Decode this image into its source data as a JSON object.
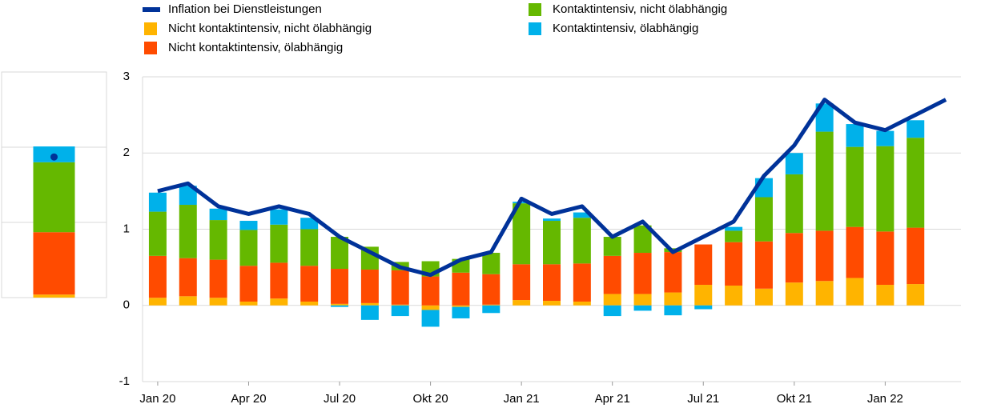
{
  "chart_data": [
    {
      "type": "bar",
      "categories": [
        "Jan 20",
        null,
        null,
        "Apr 20",
        null,
        null,
        "Jul 20",
        null,
        null,
        "Okt 20",
        null,
        null,
        "Jan 21",
        null,
        null,
        "Apr 21",
        null,
        null,
        "Jul 21",
        null,
        null,
        "Okt 21",
        null,
        null,
        "Jan 22",
        null,
        null
      ],
      "series": [
        {
          "name": "Inflation bei Dienstleistungen",
          "kind": "line",
          "color": "#003299",
          "values": [
            1.5,
            1.6,
            1.3,
            1.2,
            1.3,
            1.2,
            0.9,
            0.7,
            0.5,
            0.4,
            0.6,
            0.7,
            1.4,
            1.2,
            1.3,
            0.9,
            1.1,
            0.7,
            0.9,
            1.1,
            1.7,
            2.1,
            2.7,
            2.4,
            2.3,
            2.5,
            2.7
          ]
        },
        {
          "name": "Nicht kontaktintensiv, nicht ölabhängig",
          "kind": "bar",
          "color": "#ffb400",
          "values": [
            0.1,
            0.12,
            0.1,
            0.05,
            0.09,
            0.05,
            0.02,
            0.03,
            0.01,
            -0.06,
            -0.02,
            0.01,
            0.07,
            0.06,
            0.05,
            0.15,
            0.15,
            0.17,
            0.27,
            0.26,
            0.22,
            0.3,
            0.32,
            0.36,
            0.27,
            0.28,
            null
          ]
        },
        {
          "name": "Nicht kontaktintensiv, ölabhängig",
          "kind": "bar",
          "color": "#ff4b00",
          "values": [
            0.55,
            0.5,
            0.5,
            0.47,
            0.47,
            0.47,
            0.46,
            0.44,
            0.45,
            0.38,
            0.43,
            0.4,
            0.47,
            0.48,
            0.5,
            0.5,
            0.54,
            0.53,
            0.53,
            0.57,
            0.62,
            0.65,
            0.66,
            0.67,
            0.7,
            0.74,
            null
          ]
        },
        {
          "name": "Kontaktintensiv, nicht ölabhängig",
          "kind": "bar",
          "color": "#65b800",
          "values": [
            0.58,
            0.7,
            0.52,
            0.47,
            0.5,
            0.48,
            0.42,
            0.3,
            0.11,
            0.2,
            0.18,
            0.28,
            0.8,
            0.57,
            0.6,
            0.25,
            0.36,
            0.05,
            0,
            0.15,
            0.58,
            0.77,
            1.3,
            1.05,
            1.12,
            1.18,
            null
          ]
        },
        {
          "name": "Kontaktintensiv, ölabhängig",
          "kind": "bar",
          "color": "#00b1ea",
          "values": [
            0.25,
            0.25,
            0.15,
            0.12,
            0.2,
            0.15,
            -0.02,
            -0.19,
            -0.14,
            -0.22,
            -0.15,
            -0.1,
            0.02,
            0.03,
            0.07,
            -0.14,
            -0.07,
            -0.13,
            -0.05,
            0.05,
            0.25,
            0.28,
            0.37,
            0.3,
            0.2,
            0.23,
            null
          ]
        }
      ],
      "ylim": [
        -1,
        3
      ],
      "yticks": [
        -1,
        0,
        1,
        2,
        3
      ],
      "grid": true
    },
    {
      "type": "bar",
      "ylim": [
        0,
        3
      ],
      "yticks": [
        1,
        2
      ],
      "grid": true,
      "series": [
        {
          "color": "#ffb400",
          "values": [
            0.04
          ]
        },
        {
          "color": "#ff4b00",
          "values": [
            0.83
          ]
        },
        {
          "color": "#65b800",
          "values": [
            0.93
          ]
        },
        {
          "color": "#00b1ea",
          "values": [
            0.21
          ]
        }
      ],
      "marker": {
        "value": 1.87,
        "color": "#003299"
      }
    }
  ]
}
